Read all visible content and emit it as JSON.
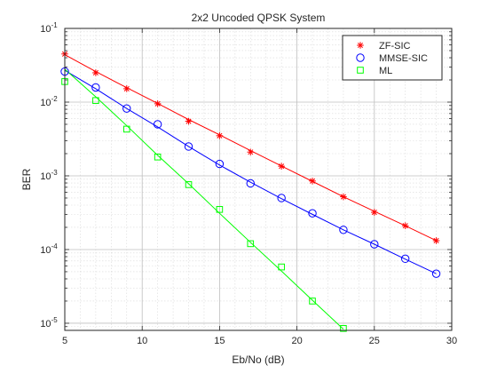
{
  "chart_data": {
    "type": "line",
    "title": "2x2 Uncoded QPSK System",
    "xlabel": "Eb/No (dB)",
    "ylabel": "BER",
    "xlim": [
      5,
      30
    ],
    "ylim": [
      8e-06,
      0.1
    ],
    "yscale": "log",
    "grid": true,
    "legend_position": "top-right",
    "x_ticks": [
      5,
      10,
      15,
      20,
      25,
      30
    ],
    "x_tick_labels": [
      "5",
      "10",
      "15",
      "20",
      "25",
      "30"
    ],
    "y_ticks": [
      0.1,
      0.01,
      0.001,
      0.0001,
      1e-05
    ],
    "y_tick_labels": [
      {
        "base": "10",
        "exp": "-1"
      },
      {
        "base": "10",
        "exp": "-2"
      },
      {
        "base": "10",
        "exp": "-3"
      },
      {
        "base": "10",
        "exp": "-4"
      },
      {
        "base": "10",
        "exp": "-5"
      }
    ],
    "series": [
      {
        "name": "ZF-SIC",
        "color": "#ff0000",
        "marker": "asterisk",
        "points": {
          "x": [
            5,
            7,
            9,
            11,
            13,
            15,
            17,
            19,
            21,
            23,
            25,
            27,
            29
          ],
          "y": [
            0.045,
            0.025,
            0.0152,
            0.0095,
            0.0055,
            0.0035,
            0.0021,
            0.00135,
            0.00085,
            0.00052,
            0.00032,
            0.00021,
            0.000132
          ]
        },
        "fit": {
          "x": [
            5,
            7,
            9,
            11,
            13,
            15,
            17,
            19,
            21,
            23,
            25,
            27,
            29
          ],
          "y": [
            0.044,
            0.026,
            0.0157,
            0.0096,
            0.0058,
            0.0036,
            0.0022,
            0.00136,
            0.00084,
            0.00052,
            0.00033,
            0.00021,
            0.000132
          ]
        }
      },
      {
        "name": "MMSE-SIC",
        "color": "#0000ff",
        "marker": "circle",
        "points": {
          "x": [
            5,
            7,
            9,
            11,
            13,
            15,
            17,
            19,
            21,
            23,
            25,
            27,
            29
          ],
          "y": [
            0.026,
            0.0158,
            0.0082,
            0.005,
            0.0025,
            0.00145,
            0.00079,
            0.0005,
            0.00031,
            0.000185,
            0.000118,
            7.5e-05,
            4.7e-05
          ]
        },
        "fit": {
          "x": [
            5,
            7,
            9,
            11,
            13,
            15,
            17,
            19,
            21,
            23,
            25,
            27,
            29
          ],
          "y": [
            0.027,
            0.0152,
            0.0082,
            0.0046,
            0.0025,
            0.0014,
            0.00082,
            0.00049,
            0.0003,
            0.000185,
            0.000118,
            7.4e-05,
            4.7e-05
          ]
        }
      },
      {
        "name": "ML",
        "color": "#00ff00",
        "marker": "square",
        "points": {
          "x": [
            5,
            7,
            9,
            11,
            13,
            15,
            17,
            19,
            21,
            23
          ],
          "y": [
            0.019,
            0.0105,
            0.0043,
            0.0018,
            0.00076,
            0.00035,
            0.00012,
            5.8e-05,
            2e-05,
            8.5e-06
          ]
        },
        "fit": {
          "x": [
            5,
            7,
            9,
            11,
            13,
            15,
            17,
            19,
            21,
            23
          ],
          "y": [
            0.028,
            0.0118,
            0.0048,
            0.0019,
            0.00078,
            0.00031,
            0.000125,
            5.1e-05,
            2.05e-05,
            8.3e-06
          ]
        }
      }
    ]
  }
}
